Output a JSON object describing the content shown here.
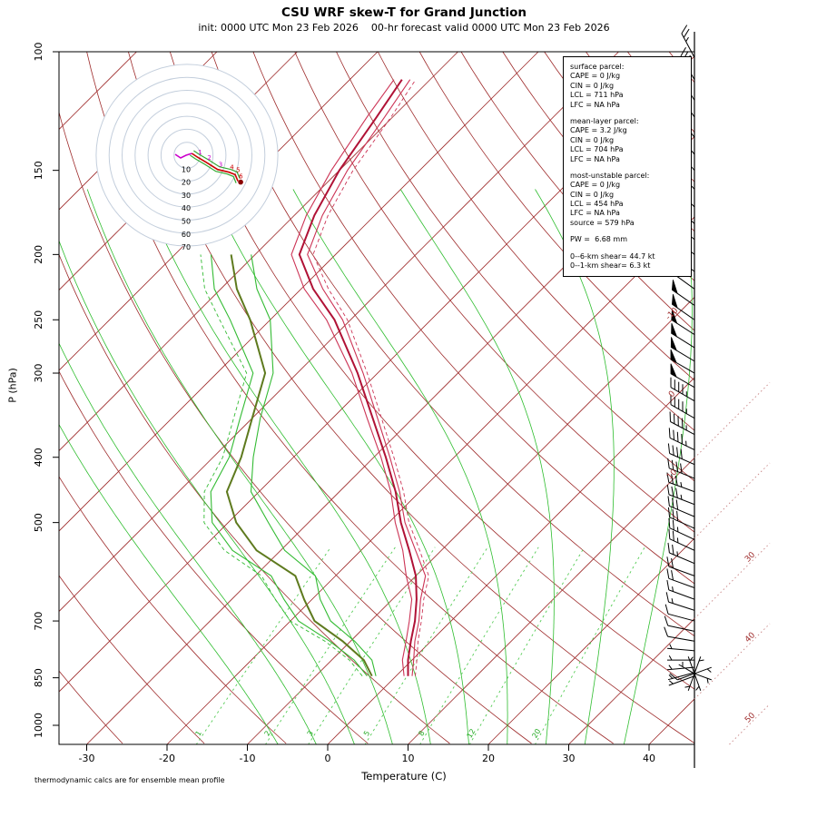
{
  "header": {
    "title": "CSU WRF skew-T for Grand Junction",
    "subtitle": "init: 0000 UTC Mon 23 Feb 2026    00-hr forecast valid 0000 UTC Mon 23 Feb 2026"
  },
  "axes": {
    "y_label": "P (hPa)",
    "x_label": "Temperature (C)",
    "pressure_ticks": [
      100,
      150,
      200,
      250,
      300,
      400,
      500,
      700,
      850,
      1000
    ],
    "temp_ticks": [
      -30,
      -20,
      -10,
      0,
      10,
      20,
      30,
      40
    ],
    "isotherm_labels_inside": [
      -10,
      0,
      10
    ],
    "isotherm_labels_outside": [
      30,
      40,
      50
    ]
  },
  "footer": {
    "note": "thermodynamic calcs are for ensemble mean profile"
  },
  "info_panel": {
    "sections": [
      {
        "title": "surface parcel:",
        "lines": [
          "CAPE = 0 J/kg",
          "CIN = 0 J/kg",
          "LCL = 711 hPa",
          "LFC = NA hPa"
        ]
      },
      {
        "title": "mean-layer parcel:",
        "lines": [
          "CAPE = 3.2 J/kg",
          "CIN = 0 J/kg",
          "LCL = 704 hPa",
          "LFC = NA hPa"
        ]
      },
      {
        "title": "most-unstable parcel:",
        "lines": [
          "CAPE = 0 J/kg",
          "CIN = 0 J/kg",
          "LCL = 454 hPa",
          "LFC = NA hPa",
          "source = 579 hPa"
        ]
      }
    ],
    "pw": "PW =  6.68 mm",
    "shear": [
      "0--6-km shear= 44.7 kt",
      "0--1-km shear= 6.3 kt"
    ]
  },
  "colors": {
    "isotherm": "#9E2B2B",
    "iso_label": "#9E2B2B",
    "iso_dotted": "#C98585",
    "moist": "#2EBD2E",
    "mixing": "#55CC55",
    "mixing_label": "#22AA22",
    "temp_member": "#CC3355",
    "temp_mean": "#B01236",
    "dew_member": "#33BB33",
    "dew_mean": "#5E7A1E",
    "hodo_ring": "#C3CEDC",
    "hodo_trace": "#CC0000",
    "hodo_member": "#33AA33",
    "hodo_low": "#CC00CC",
    "barb": "#000000"
  },
  "chart_data": {
    "type": "skewt-logp",
    "pressure_hPa": [
      845,
      800,
      750,
      700,
      650,
      600,
      550,
      500,
      450,
      400,
      350,
      300,
      250,
      225,
      200,
      175,
      150,
      125,
      110
    ],
    "temperature_C": {
      "mean": [
        1.5,
        -0.5,
        -2.5,
        -4.5,
        -7,
        -10,
        -14,
        -18.5,
        -23,
        -28.5,
        -35,
        -42.5,
        -52,
        -58.5,
        -64.5,
        -67.5,
        -70,
        -72,
        -73.5
      ],
      "members": [
        [
          2,
          0.2,
          -2,
          -4,
          -6.5,
          -8.8,
          -13.2,
          -18,
          -22.5,
          -28,
          -34.4,
          -41.8,
          -51,
          -57.3,
          -63.5,
          -66.5,
          -69,
          -71,
          -72.5
        ],
        [
          1,
          -1.2,
          -3.1,
          -5.2,
          -7.6,
          -11.2,
          -14.8,
          -19.2,
          -23.6,
          -29.1,
          -35.7,
          -43.2,
          -53,
          -59.6,
          -65.5,
          -68.5,
          -71,
          -73.2,
          -74.5
        ]
      ],
      "dashed": [
        2.4,
        0.6,
        -1.6,
        -3.7,
        -6.1,
        -8.4,
        -12.7,
        -17.5,
        -22,
        -27.5,
        -33.9,
        -41.3,
        -50.4,
        -56.6,
        -62.8,
        -65.8,
        -68.3,
        -70.2,
        -71.8
      ]
    },
    "dewpoint_C": {
      "mean": [
        -3,
        -6,
        -11,
        -17,
        -21,
        -25,
        -33,
        -39,
        -44,
        -46.5,
        -50,
        -54,
        -62.5,
        -68,
        -73,
        null,
        null,
        null,
        null
      ],
      "members": [
        [
          -2.5,
          -5,
          -9.5,
          -15,
          -19,
          -22.5,
          -29.5,
          -35,
          -41,
          -45,
          -49,
          -53,
          -60,
          -65.5,
          -70.5,
          null,
          null,
          null,
          null
        ],
        [
          -3.6,
          -7.2,
          -12.6,
          -19,
          -23.5,
          -28,
          -36,
          -42,
          -46,
          -48,
          -51.5,
          -55.5,
          -65,
          -70.8,
          -75.5,
          null,
          null,
          null,
          null
        ]
      ],
      "dashed": [
        -4.2,
        -7.8,
        -13.2,
        -20,
        -24.6,
        -29.2,
        -37,
        -43,
        -46.8,
        -48.8,
        -52.3,
        -56.3,
        -66.3,
        -72,
        -76.8,
        null,
        null,
        null,
        null
      ]
    },
    "winds_format": "[p_hPa, dir_deg, speed_kt]",
    "winds": [
      [
        102,
        332,
        26
      ],
      [
        110,
        330,
        28
      ],
      [
        118,
        328,
        30
      ],
      [
        125,
        325,
        32
      ],
      [
        134,
        323,
        34
      ],
      [
        142,
        321,
        36
      ],
      [
        150,
        320,
        38
      ],
      [
        160,
        318,
        39
      ],
      [
        170,
        316,
        40
      ],
      [
        180,
        313,
        42
      ],
      [
        190,
        311,
        44
      ],
      [
        200,
        310,
        45
      ],
      [
        212,
        308,
        47
      ],
      [
        225,
        306,
        48
      ],
      [
        238,
        305,
        50
      ],
      [
        250,
        305,
        52
      ],
      [
        263,
        303,
        51
      ],
      [
        275,
        302,
        51
      ],
      [
        288,
        301,
        50
      ],
      [
        300,
        300,
        50
      ],
      [
        315,
        300,
        48
      ],
      [
        330,
        300,
        47
      ],
      [
        350,
        300,
        46
      ],
      [
        370,
        298,
        44
      ],
      [
        390,
        296,
        43
      ],
      [
        410,
        294,
        41
      ],
      [
        430,
        292,
        40
      ],
      [
        450,
        290,
        37
      ],
      [
        470,
        291,
        35
      ],
      [
        490,
        293,
        32
      ],
      [
        510,
        294,
        29
      ],
      [
        530,
        295,
        27
      ],
      [
        550,
        295,
        26
      ],
      [
        575,
        293,
        24
      ],
      [
        600,
        290,
        21
      ],
      [
        625,
        290,
        18
      ],
      [
        650,
        290,
        16
      ],
      [
        675,
        288,
        14
      ],
      [
        700,
        285,
        12
      ],
      [
        725,
        282,
        10
      ],
      [
        750,
        280,
        8
      ],
      [
        775,
        275,
        7
      ],
      [
        800,
        270,
        6
      ],
      [
        820,
        265,
        5
      ],
      [
        835,
        255,
        4
      ],
      [
        845,
        250,
        4
      ]
    ],
    "surface_cluster_format": "[dir_deg, speed_kt]",
    "surface_cluster": [
      [
        20,
        6
      ],
      [
        70,
        5
      ],
      [
        110,
        7
      ],
      [
        160,
        5
      ],
      [
        200,
        6
      ],
      [
        250,
        8
      ],
      [
        300,
        7
      ],
      [
        340,
        6
      ]
    ],
    "background": {
      "isotherms_C": {
        "min": -120,
        "max": 50,
        "step": 10
      },
      "dry_adiabats_C": {
        "min": -40,
        "max": 180,
        "step": 10
      },
      "moist_adiabats_C": [
        -10,
        -5,
        0,
        5,
        10,
        15,
        20,
        25,
        30,
        35
      ],
      "mixing_ratio_g_kg": [
        1,
        2,
        3,
        5,
        8,
        12,
        20
      ]
    },
    "hodograph": {
      "rings_kt": [
        10,
        20,
        30,
        40,
        50,
        60,
        70
      ],
      "trace_format": "u,v in kt; km = height label",
      "trace": [
        {
          "km": 0,
          "u": 3.8,
          "v": 1.4
        },
        {
          "km": 1,
          "u": 7.9,
          "v": -1.4
        },
        {
          "km": 2,
          "u": 15,
          "v": -5.5
        },
        {
          "km": 3,
          "u": 23.6,
          "v": -11
        },
        {
          "km": 4,
          "u": 32.4,
          "v": -13.1
        },
        {
          "km": 5,
          "u": 37.1,
          "v": -15
        },
        {
          "km": 6,
          "u": 39.2,
          "v": -20
        }
      ]
    }
  }
}
